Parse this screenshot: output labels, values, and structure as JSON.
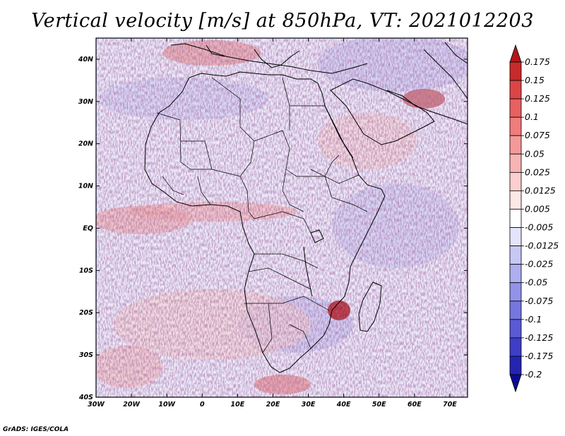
{
  "title": "Vertical velocity [m/s] at 850hPa, VT: 2021012203",
  "credit": "GrADS: IGES/COLA",
  "map": {
    "lon_range": [
      -30,
      75
    ],
    "lat_range": [
      -40,
      45
    ],
    "lat_ticks": [
      "40N",
      "30N",
      "20N",
      "10N",
      "EQ",
      "10S",
      "20S",
      "30S",
      "40S"
    ],
    "lon_ticks": [
      "30W",
      "20W",
      "10W",
      "0",
      "10E",
      "20E",
      "30E",
      "40E",
      "50E",
      "60E",
      "70E"
    ],
    "field": "vertical velocity at 850hPa (m/s)"
  },
  "colorbar": {
    "levels": [
      "0.175",
      "0.15",
      "0.125",
      "0.1",
      "0.075",
      "0.05",
      "0.025",
      "0.0125",
      "0.005",
      "-0.005",
      "-0.0125",
      "-0.025",
      "-0.05",
      "-0.075",
      "-0.1",
      "-0.125",
      "-0.175",
      "-0.2"
    ],
    "colors": [
      "#b01818",
      "#c92a2a",
      "#dc4545",
      "#e86060",
      "#f07c7c",
      "#f49999",
      "#f8b4b4",
      "#fbcfcf",
      "#fde7e7",
      "#ffffff",
      "#e4e4fb",
      "#c8c8f5",
      "#aeaef0",
      "#9292e8",
      "#7676df",
      "#5a5ad4",
      "#3e3ec6",
      "#2424b4",
      "#0c0c94"
    ]
  }
}
